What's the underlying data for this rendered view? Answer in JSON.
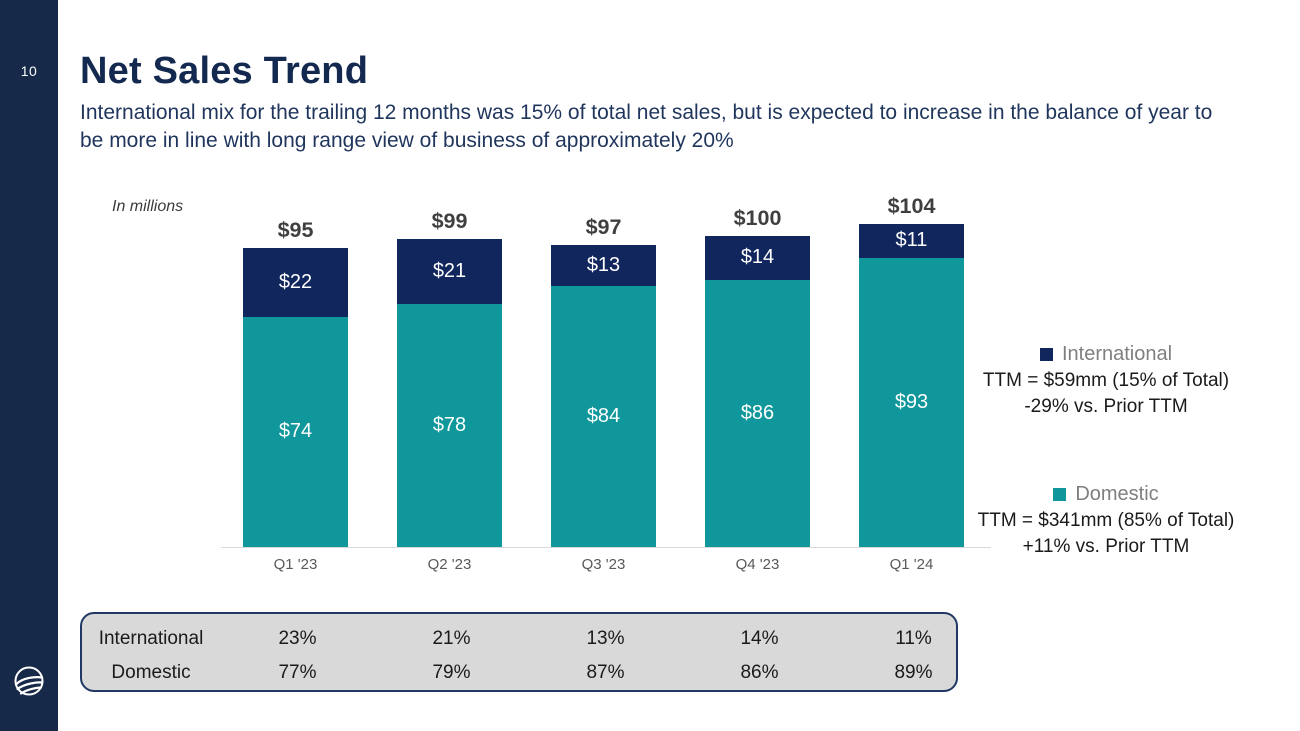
{
  "slide": {
    "number": "10",
    "title": "Net Sales Trend",
    "subtitle": "International mix for the trailing 12 months was 15% of total net sales, but is expected to increase in the balance of year to be more in line with long range view of business of approximately 20%",
    "note": "In millions"
  },
  "colors": {
    "sidebar": "#172949",
    "international": "#12265E",
    "domestic": "#10979B",
    "total_label": "#3F3F3F"
  },
  "chart_data": {
    "type": "bar",
    "stacked": true,
    "title": "Net Sales Trend",
    "units": "In millions",
    "categories": [
      "Q1 '23",
      "Q2 '23",
      "Q3 '23",
      "Q4 '23",
      "Q1 '24"
    ],
    "series": [
      {
        "name": "Domestic",
        "color": "#10979B",
        "values": [
          74,
          78,
          84,
          86,
          93
        ],
        "labels": [
          "$74",
          "$78",
          "$84",
          "$86",
          "$93"
        ]
      },
      {
        "name": "International",
        "color": "#12265E",
        "values": [
          22,
          21,
          13,
          14,
          11
        ],
        "labels": [
          "$22",
          "$21",
          "$13",
          "$14",
          "$11"
        ]
      }
    ],
    "totals": [
      95,
      99,
      97,
      100,
      104
    ],
    "total_labels": [
      "$95",
      "$99",
      "$97",
      "$100",
      "$104"
    ],
    "ylim": [
      0,
      110
    ],
    "grid": false,
    "legend_position": "right"
  },
  "legend": {
    "international": {
      "label": "International",
      "ttm": "TTM = $59mm (15% of Total)",
      "change": "-29% vs. Prior TTM"
    },
    "domestic": {
      "label": "Domestic",
      "ttm": "TTM = $341mm (85% of Total)",
      "change": "+11% vs. Prior TTM"
    }
  },
  "table": {
    "rows": [
      {
        "label": "International",
        "values": [
          "23%",
          "21%",
          "13%",
          "14%",
          "11%"
        ]
      },
      {
        "label": "Domestic",
        "values": [
          "77%",
          "79%",
          "87%",
          "86%",
          "89%"
        ]
      }
    ]
  }
}
